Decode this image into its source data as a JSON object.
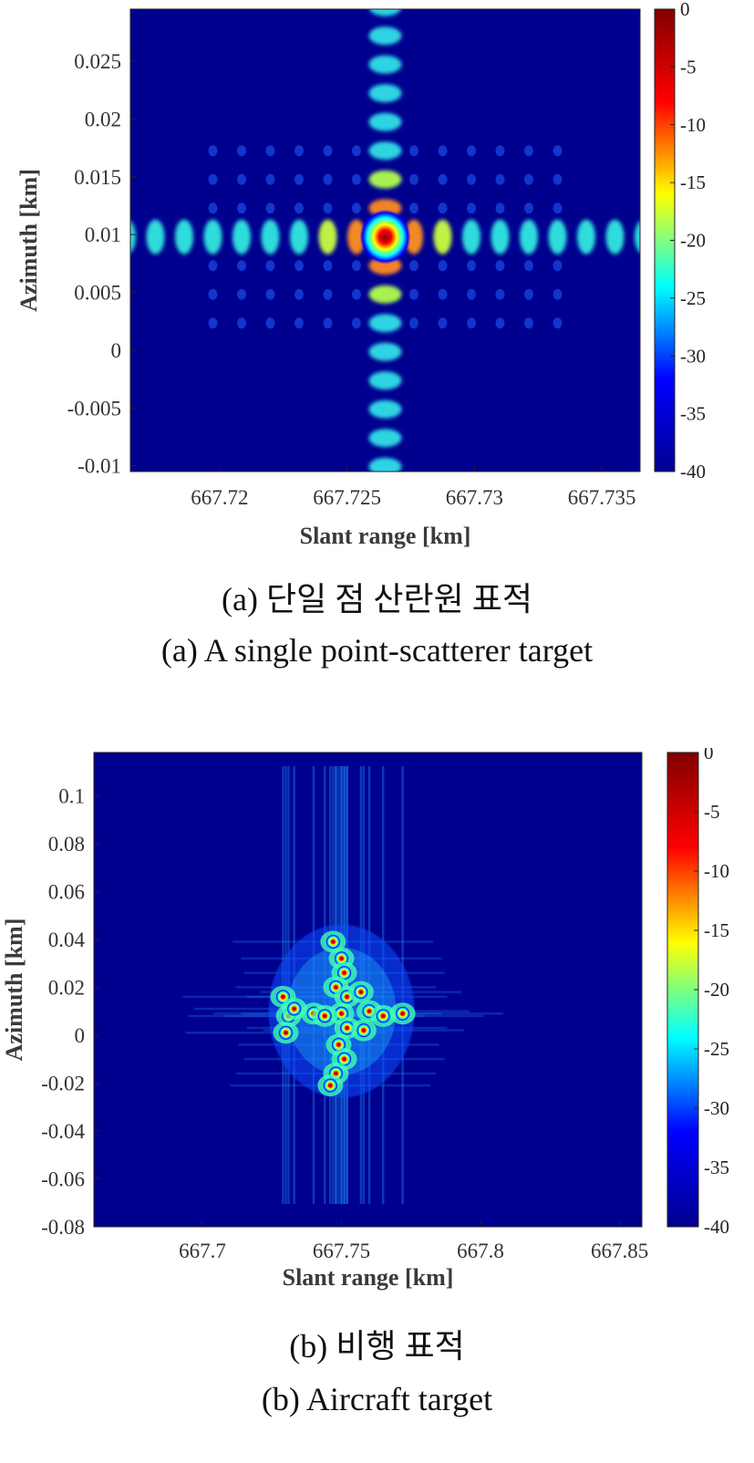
{
  "colors": {
    "jet": [
      "#00008f",
      "#0000ff",
      "#00ffff",
      "#ffff00",
      "#ff0000",
      "#800000"
    ],
    "background": "#00008f"
  },
  "chart_data": [
    {
      "type": "heatmap",
      "title": "",
      "xlabel": "Slant range [km]",
      "ylabel": "Azimuth [km]",
      "xlim": [
        667.7165,
        667.7365
      ],
      "ylim": [
        -0.0105,
        0.0295
      ],
      "x_ticks": [
        "667.72",
        "667.725",
        "667.73",
        "667.735"
      ],
      "x_tick_values": [
        667.72,
        667.725,
        667.73,
        667.735
      ],
      "y_ticks": [
        "-0.01",
        "-0.005",
        "0",
        "0.005",
        "0.01",
        "0.015",
        "0.02",
        "0.025"
      ],
      "y_tick_values": [
        -0.01,
        -0.005,
        0,
        0.005,
        0.01,
        0.015,
        0.02,
        0.025
      ],
      "colorbar": {
        "min": -40,
        "max": 0,
        "ticks": [
          "0",
          "-5",
          "-10",
          "-15",
          "-20",
          "-25",
          "-30",
          "-35",
          "-40"
        ],
        "tick_values": [
          0,
          -5,
          -10,
          -15,
          -20,
          -25,
          -30,
          -35,
          -40
        ]
      },
      "scatterers": [
        {
          "x": 667.7265,
          "y": 0.0098,
          "db": 0
        }
      ],
      "caption_ko": "(a) 단일 점 산란원 표적",
      "caption_en": "(a) A single point-scatterer target"
    },
    {
      "type": "heatmap",
      "title": "",
      "xlabel": "Slant range [km]",
      "ylabel": "Azimuth [km]",
      "xlim": [
        667.661,
        667.858
      ],
      "ylim": [
        -0.08,
        0.118
      ],
      "x_ticks": [
        "667.7",
        "667.75",
        "667.8",
        "667.85"
      ],
      "x_tick_values": [
        667.7,
        667.75,
        667.8,
        667.85
      ],
      "y_ticks": [
        "-0.08",
        "-0.06",
        "-0.04",
        "-0.02",
        "0",
        "0.02",
        "0.04",
        "0.06",
        "0.08",
        "0.1"
      ],
      "y_tick_values": [
        -0.08,
        -0.06,
        -0.04,
        -0.02,
        0,
        0.02,
        0.04,
        0.06,
        0.08,
        0.1
      ],
      "colorbar": {
        "min": -40,
        "max": 0,
        "ticks": [
          "0",
          "-5",
          "-10",
          "-15",
          "-20",
          "-25",
          "-30",
          "-35",
          "-40"
        ],
        "tick_values": [
          0,
          -5,
          -10,
          -15,
          -20,
          -25,
          -30,
          -35,
          -40
        ]
      },
      "scatterers": [
        {
          "x": 667.747,
          "y": 0.039,
          "db": -2
        },
        {
          "x": 667.75,
          "y": 0.032,
          "db": -4
        },
        {
          "x": 667.751,
          "y": 0.026,
          "db": -2
        },
        {
          "x": 667.748,
          "y": 0.02,
          "db": -3
        },
        {
          "x": 667.752,
          "y": 0.016,
          "db": -1
        },
        {
          "x": 667.75,
          "y": 0.009,
          "db": -2
        },
        {
          "x": 667.752,
          "y": 0.003,
          "db": -1
        },
        {
          "x": 667.749,
          "y": -0.004,
          "db": -3
        },
        {
          "x": 667.751,
          "y": -0.01,
          "db": -2
        },
        {
          "x": 667.748,
          "y": -0.016,
          "db": -4
        },
        {
          "x": 667.746,
          "y": -0.021,
          "db": -2
        },
        {
          "x": 667.729,
          "y": 0.016,
          "db": -3
        },
        {
          "x": 667.731,
          "y": 0.008,
          "db": -2
        },
        {
          "x": 667.733,
          "y": 0.011,
          "db": -5
        },
        {
          "x": 667.73,
          "y": 0.001,
          "db": -4
        },
        {
          "x": 667.74,
          "y": 0.009,
          "db": -4
        },
        {
          "x": 667.744,
          "y": 0.008,
          "db": -5
        },
        {
          "x": 667.757,
          "y": 0.018,
          "db": -3
        },
        {
          "x": 667.76,
          "y": 0.01,
          "db": -2
        },
        {
          "x": 667.758,
          "y": 0.002,
          "db": -3
        },
        {
          "x": 667.765,
          "y": 0.008,
          "db": -5
        },
        {
          "x": 667.772,
          "y": 0.009,
          "db": -4
        }
      ],
      "caption_ko": "(b) 비행 표적",
      "caption_en": "(b) Aircraft target"
    }
  ]
}
